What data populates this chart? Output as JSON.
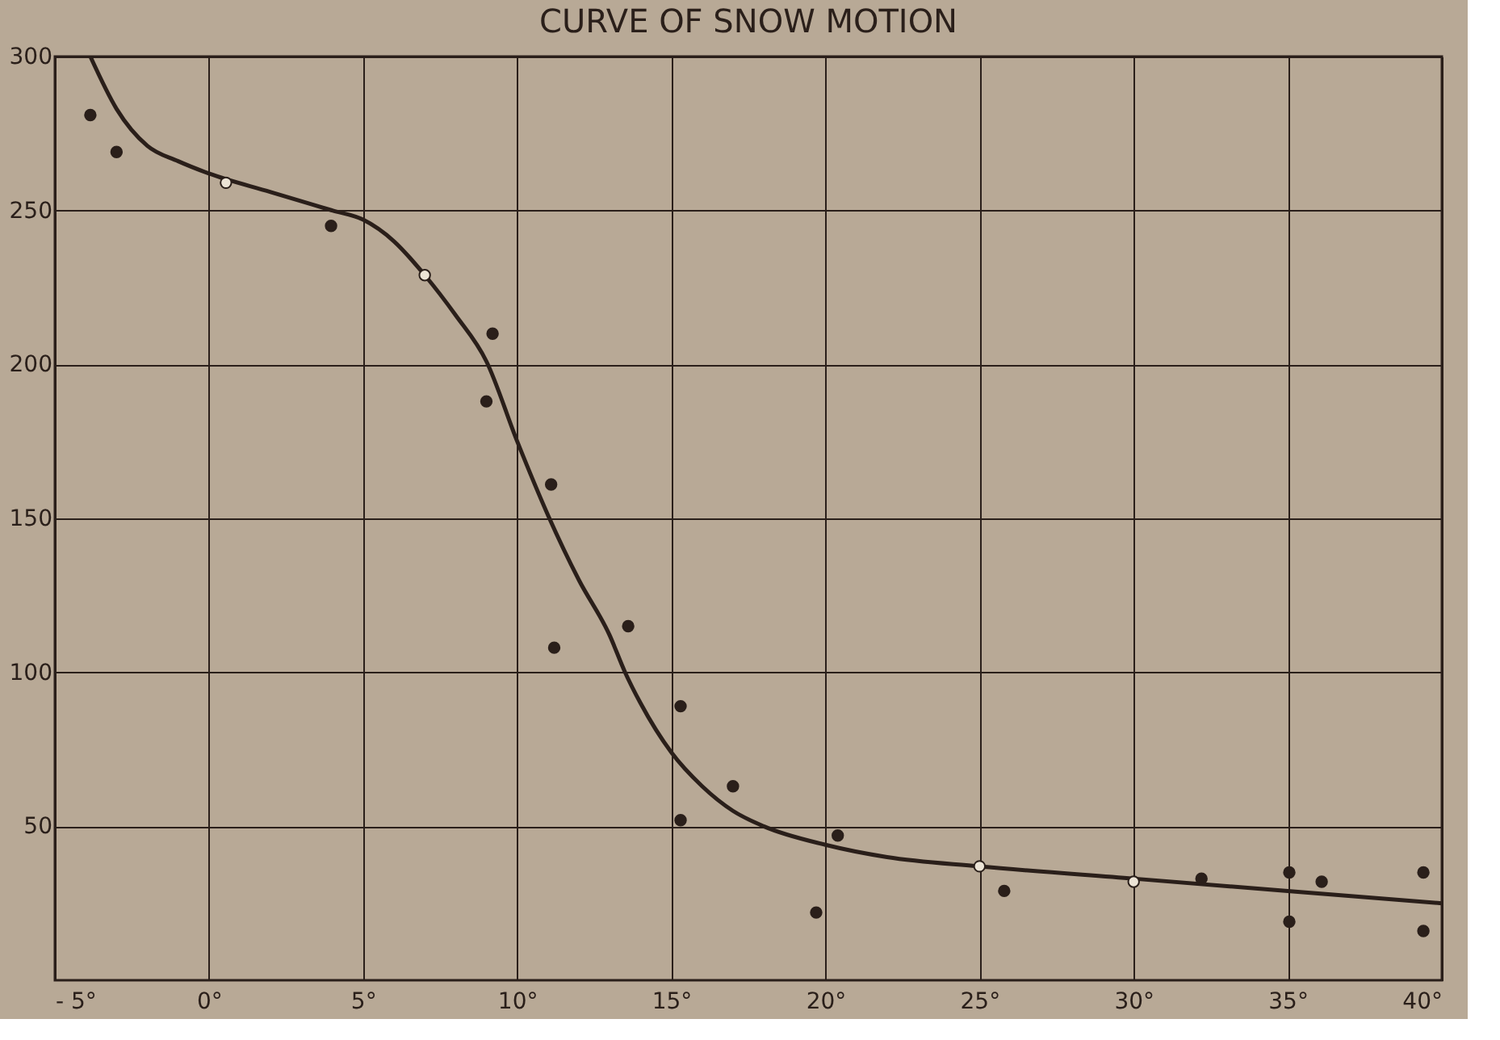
{
  "chart_data": {
    "type": "scatter",
    "title": "CURVE OF SNOW MOTION",
    "xlim": [
      -5,
      40
    ],
    "ylim": [
      0,
      300
    ],
    "xticks": [
      {
        "value": -5,
        "label": "- 5°"
      },
      {
        "value": 0,
        "label": "0°"
      },
      {
        "value": 5,
        "label": "5°"
      },
      {
        "value": 10,
        "label": "10°"
      },
      {
        "value": 15,
        "label": "15°"
      },
      {
        "value": 20,
        "label": "20°"
      },
      {
        "value": 25,
        "label": "25°"
      },
      {
        "value": 30,
        "label": "30°"
      },
      {
        "value": 35,
        "label": "35°"
      },
      {
        "value": 40,
        "label": "40°"
      }
    ],
    "yticks": [
      50,
      100,
      150,
      200,
      250,
      300
    ],
    "grid": true,
    "series": [
      {
        "type": "line",
        "color": "#2a1f1a",
        "marker": "none",
        "line_style": "solid",
        "x": [
          -3.85,
          -3,
          -2,
          -1,
          0,
          2,
          4,
          5,
          6,
          7,
          8,
          9,
          10,
          11,
          12,
          13,
          13.5,
          14,
          15,
          16,
          17,
          18,
          20,
          22,
          25,
          30,
          35,
          40
        ],
        "values": [
          300,
          283,
          271,
          266,
          262,
          256,
          250,
          247,
          240,
          229,
          216,
          201,
          175,
          151,
          130,
          112,
          100,
          90,
          74,
          63,
          55,
          50,
          44,
          40,
          37,
          33,
          29,
          25
        ]
      },
      {
        "color": "#2a1f1a",
        "marker": "circle",
        "x": [
          -3.85,
          -3,
          3.96,
          9.2,
          9.0,
          11.1,
          11.2,
          13.6,
          15.3,
          15.3,
          17.0,
          20.4,
          19.7,
          25.8,
          32.2,
          35.05,
          35.05,
          36.1,
          39.4,
          39.4
        ],
        "values": [
          281,
          269,
          245,
          210,
          188,
          161,
          108,
          115,
          89,
          52,
          63,
          47,
          22,
          29,
          33,
          35,
          19,
          32,
          16,
          35
        ]
      },
      {
        "color": "#ece4d6",
        "marker": "circle",
        "x": [
          0.55,
          7.0,
          25,
          30
        ],
        "values": [
          259,
          229,
          37,
          32
        ]
      }
    ]
  }
}
